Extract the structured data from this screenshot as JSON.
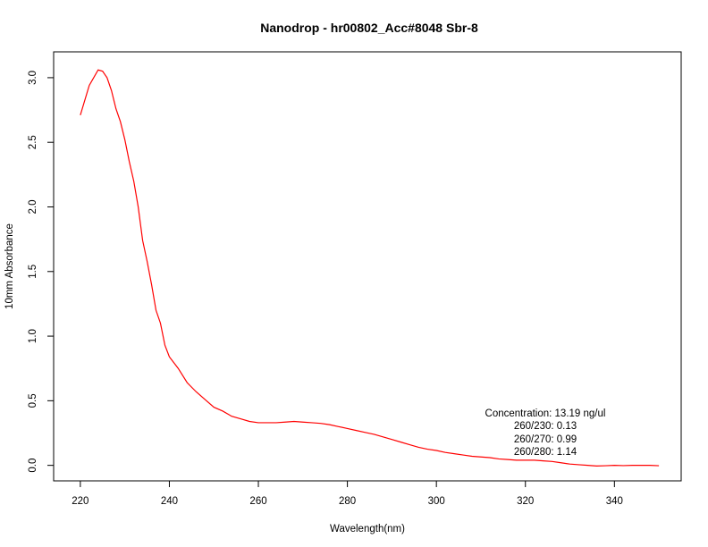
{
  "chart_data": {
    "type": "line",
    "title": "Nanodrop - hr00802_Acc#8048 Sbr-8",
    "xlabel": "Wavelength(nm)",
    "ylabel": "10mm Absorbance",
    "xlim": [
      214,
      355
    ],
    "ylim": [
      -0.12,
      3.2
    ],
    "xticks": [
      220,
      240,
      260,
      280,
      300,
      320,
      340
    ],
    "xtick_labels": [
      "220",
      "240",
      "260",
      "280",
      "300",
      "320",
      "340"
    ],
    "yticks": [
      0.0,
      0.5,
      1.0,
      1.5,
      2.0,
      2.5,
      3.0
    ],
    "ytick_labels": [
      "0.0",
      "0.5",
      "1.0",
      "1.5",
      "2.0",
      "2.5",
      "3.0"
    ],
    "grid": false,
    "legend": "none",
    "series": [
      {
        "color": "#ff0000",
        "x": [
          220,
          222,
          224,
          225,
          226,
          227,
          228,
          229,
          230,
          231,
          232,
          233,
          234,
          235,
          236,
          237,
          238,
          239,
          240,
          242,
          244,
          246,
          248,
          250,
          252,
          254,
          256,
          258,
          260,
          262,
          264,
          266,
          268,
          270,
          272,
          274,
          276,
          278,
          280,
          282,
          284,
          286,
          288,
          290,
          292,
          294,
          296,
          298,
          300,
          302,
          304,
          306,
          308,
          310,
          312,
          314,
          316,
          318,
          320,
          322,
          324,
          326,
          328,
          330,
          332,
          334,
          336,
          338,
          340,
          342,
          344,
          346,
          348,
          350
        ],
        "y": [
          2.71,
          2.94,
          3.06,
          3.05,
          3.0,
          2.9,
          2.76,
          2.66,
          2.52,
          2.35,
          2.2,
          2.0,
          1.74,
          1.58,
          1.4,
          1.2,
          1.1,
          0.93,
          0.84,
          0.75,
          0.64,
          0.57,
          0.51,
          0.45,
          0.42,
          0.38,
          0.36,
          0.34,
          0.33,
          0.33,
          0.33,
          0.335,
          0.34,
          0.335,
          0.33,
          0.325,
          0.315,
          0.3,
          0.285,
          0.27,
          0.255,
          0.24,
          0.22,
          0.2,
          0.18,
          0.16,
          0.14,
          0.125,
          0.115,
          0.1,
          0.09,
          0.08,
          0.07,
          0.065,
          0.06,
          0.05,
          0.045,
          0.04,
          0.04,
          0.04,
          0.035,
          0.03,
          0.02,
          0.01,
          0.005,
          0.0,
          -0.005,
          -0.003,
          0.0,
          -0.002,
          0.0,
          0.0,
          0.0,
          -0.003
        ]
      }
    ],
    "annotations": [
      "Concentration: 13.19 ng/ul",
      "260/230: 0.13",
      "260/270: 0.99",
      "260/280: 1.14"
    ]
  }
}
